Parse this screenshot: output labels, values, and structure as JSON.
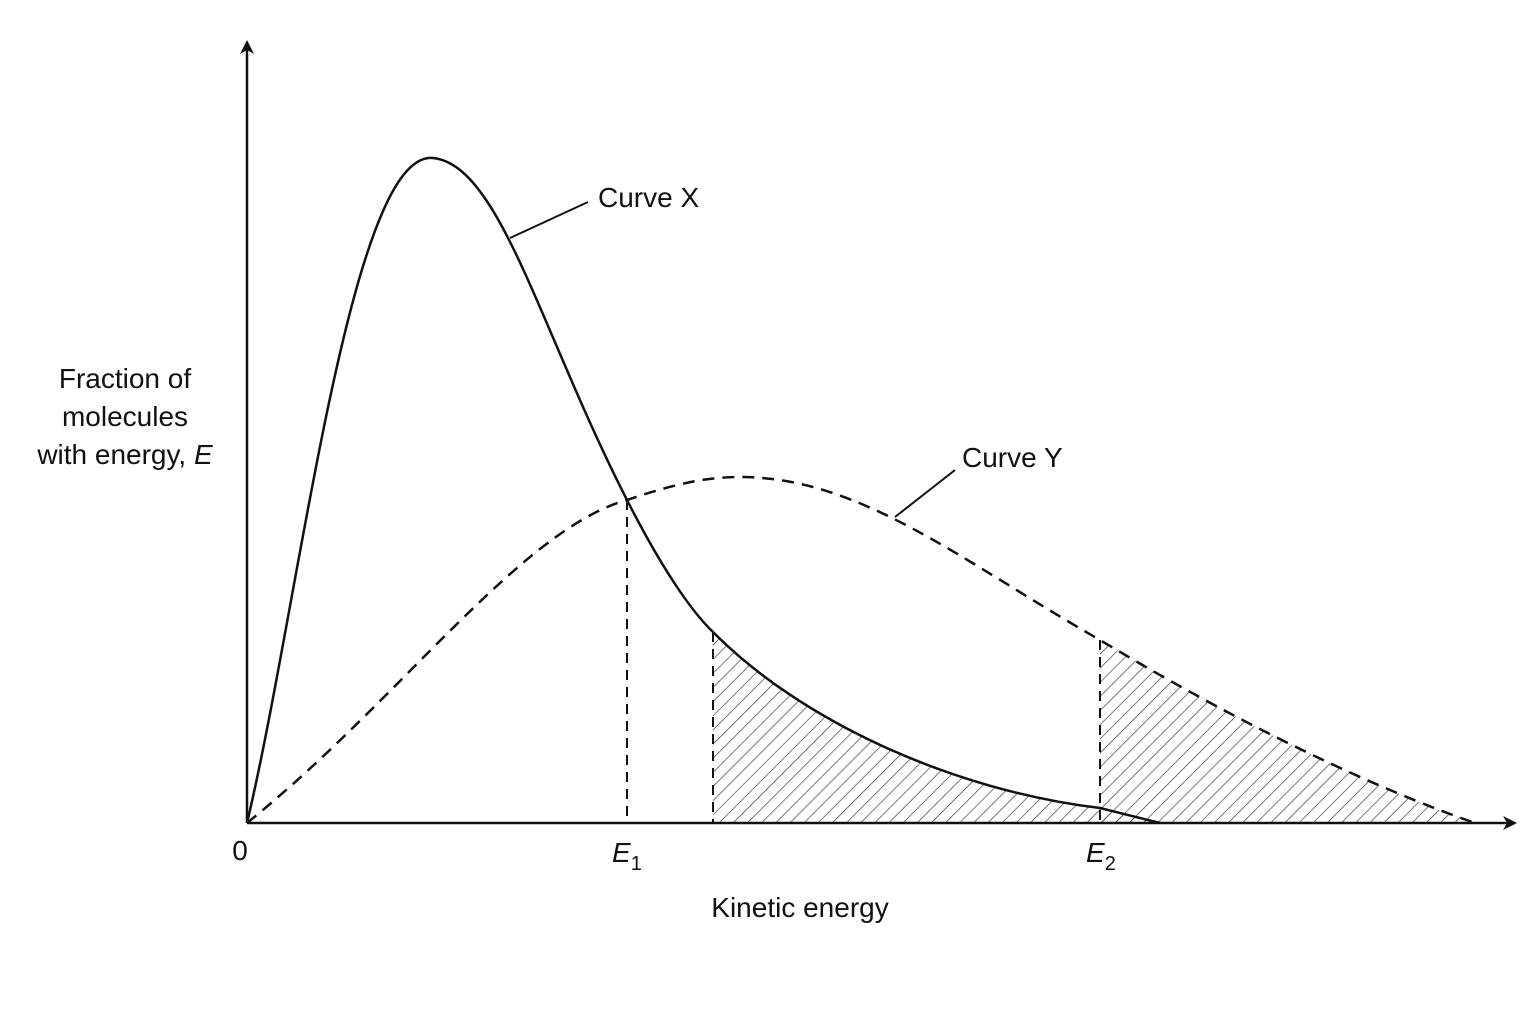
{
  "diagram": {
    "y_axis_label": {
      "lines": [
        "Fraction of",
        "molecules",
        "with energy, "
      ],
      "italic": "E"
    },
    "x_axis_label": "Kinetic energy",
    "origin": "0",
    "markers": [
      {
        "label": "E",
        "subscript": "1"
      },
      {
        "label": "E",
        "subscript": "2"
      }
    ],
    "curves": [
      {
        "label": "Curve X"
      },
      {
        "label": "Curve Y"
      }
    ]
  }
}
